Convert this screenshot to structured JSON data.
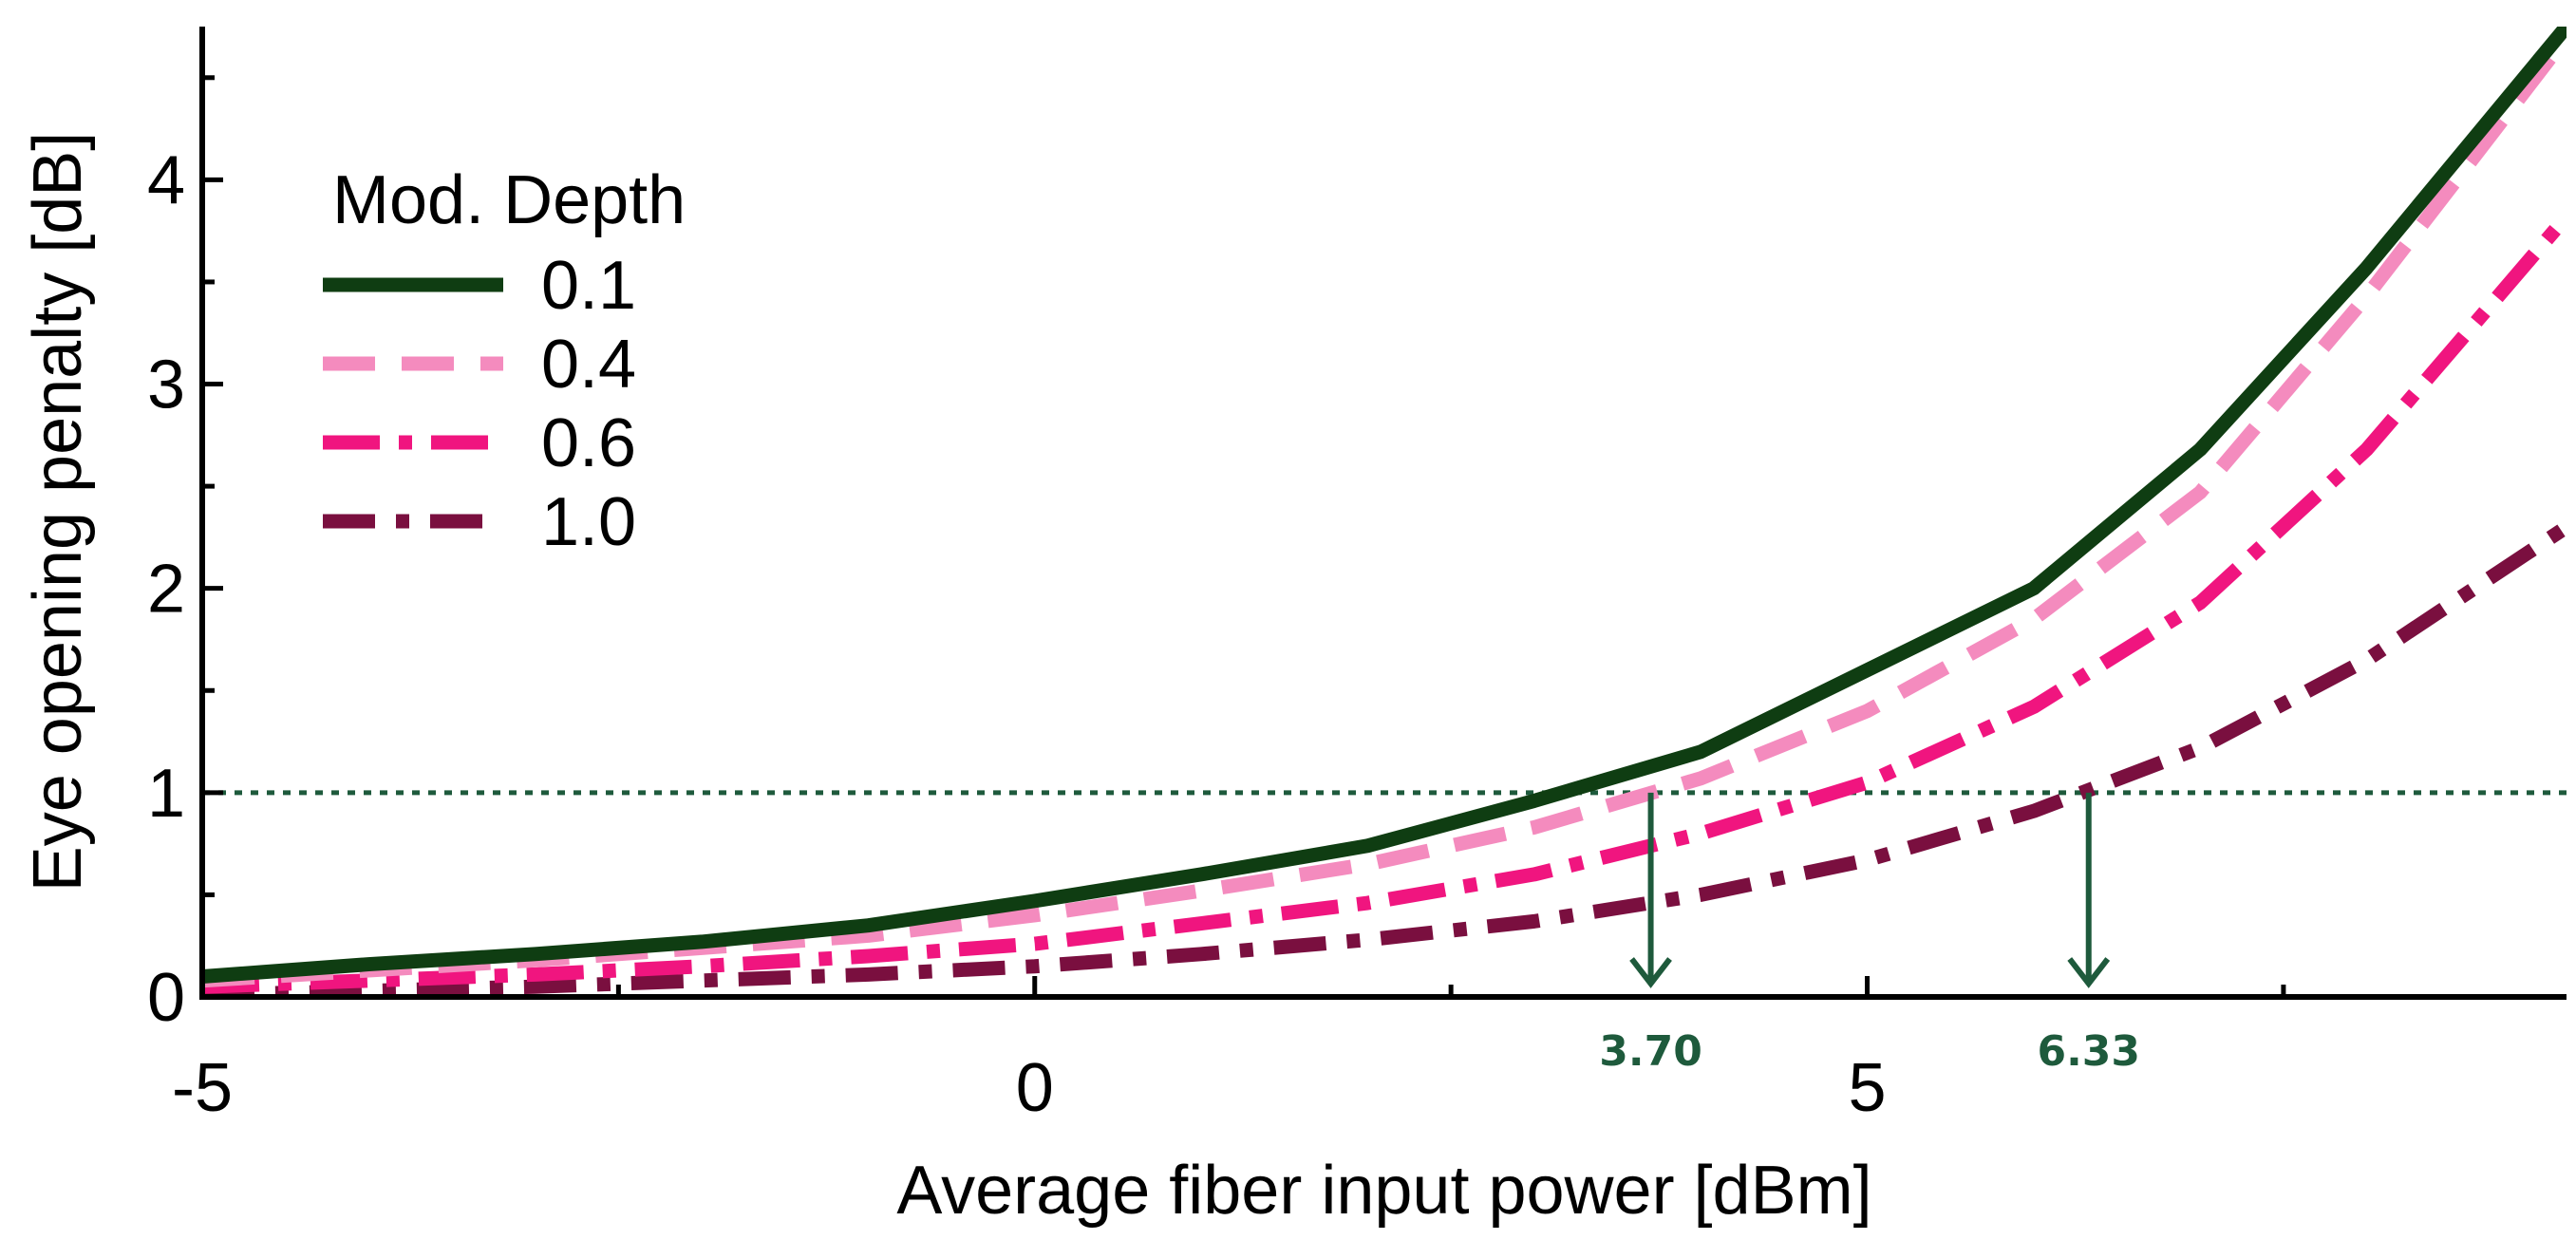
{
  "chart_data": {
    "type": "line",
    "title": "",
    "xlabel": "Average fiber input power [dBm]",
    "ylabel": "Eye opening penalty [dB]",
    "xlim": [
      -5,
      9.2
    ],
    "ylim": [
      0,
      4.75
    ],
    "xticks": [
      -5,
      0,
      5
    ],
    "xtick_labels": [
      "-5",
      "0",
      "5"
    ],
    "xminor": [
      -2.5,
      2.5,
      7.5
    ],
    "yticks": [
      0,
      1,
      2,
      3,
      4
    ],
    "ytick_labels": [
      "0",
      "1",
      "2",
      "3",
      "4"
    ],
    "yminor": [
      0.5,
      1.5,
      2.5,
      3.5,
      4.5
    ],
    "legend": {
      "title": "Mod. Depth",
      "position": "top-left",
      "entries": [
        "0.1",
        "0.4",
        "0.6",
        "1.0"
      ]
    },
    "series": [
      {
        "name": "0.1",
        "style": "solid",
        "color": "#0f3d12",
        "x": [
          -5,
          -4,
          -3,
          -2,
          -1,
          0,
          1,
          2,
          3,
          4,
          5,
          6,
          7,
          8,
          9.2
        ],
        "y": [
          0.1,
          0.16,
          0.21,
          0.27,
          0.35,
          0.47,
          0.6,
          0.74,
          0.96,
          1.2,
          1.6,
          2.0,
          2.68,
          3.57,
          4.75
        ]
      },
      {
        "name": "0.4",
        "style": "dash",
        "color": "#f48bbe",
        "x": [
          -5,
          -4,
          -3,
          -2,
          -1,
          0,
          1,
          2,
          3,
          4,
          5,
          6,
          7,
          8,
          9.2
        ],
        "y": [
          0.08,
          0.13,
          0.18,
          0.24,
          0.3,
          0.4,
          0.52,
          0.65,
          0.83,
          1.07,
          1.4,
          1.85,
          2.47,
          3.43,
          4.7
        ]
      },
      {
        "name": "0.6",
        "style": "dashdot",
        "color": "#f0157f",
        "x": [
          -5,
          -4,
          -3,
          -2,
          -1,
          0,
          1,
          2,
          3,
          4,
          5,
          6,
          7,
          8,
          9.2
        ],
        "y": [
          0.05,
          0.08,
          0.11,
          0.15,
          0.2,
          0.26,
          0.36,
          0.46,
          0.6,
          0.8,
          1.05,
          1.42,
          1.93,
          2.68,
          3.82
        ]
      },
      {
        "name": "1.0",
        "style": "longdashdot",
        "color": "#7a0f3f",
        "x": [
          -5,
          -4,
          -3,
          -2,
          -1,
          0,
          1,
          2,
          3,
          4,
          5,
          6,
          7,
          8,
          9.2
        ],
        "y": [
          0.01,
          0.03,
          0.05,
          0.08,
          0.11,
          0.15,
          0.21,
          0.28,
          0.37,
          0.5,
          0.67,
          0.91,
          1.22,
          1.65,
          2.3
        ]
      }
    ],
    "reference_line": {
      "y": 1,
      "style": "dotted",
      "color": "#1e5a3c"
    },
    "annotations": [
      {
        "x": 3.7,
        "text": "3.70",
        "color": "#1e5a3c"
      },
      {
        "x": 6.33,
        "text": "6.33",
        "color": "#1e5a3c"
      }
    ]
  }
}
